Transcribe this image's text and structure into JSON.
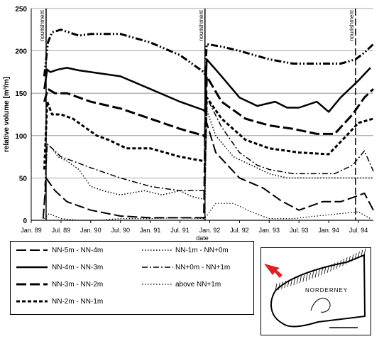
{
  "chart_data": {
    "type": "line",
    "title": "",
    "xlabel": "date",
    "ylabel": "relative volume [m³/m]",
    "ylim": [
      0,
      250
    ],
    "yticks": [
      0,
      50,
      100,
      150,
      200,
      250
    ],
    "xticks": [
      "Jan. 89",
      "Jul. 89",
      "Jan. 90",
      "Jul. 90",
      "Jan. 91",
      "Jul. 91",
      "Jan. 92",
      "Jul. 92",
      "Jan. 93",
      "Jul. 93",
      "Jan. 94",
      "Jul. 94"
    ],
    "x_domain": [
      1989.0,
      1994.75
    ],
    "grid": "horizontal",
    "annotations": [
      {
        "text": "nourishment",
        "x": 1989.25
      },
      {
        "text": "nourishment",
        "x": 1991.92
      },
      {
        "text": "nourishment",
        "x": 1994.45
      }
    ],
    "series": [
      {
        "name": "NN-5m - NN-4m",
        "style": "longdash",
        "width": 2,
        "x": [
          1989.2,
          1989.25,
          1989.3,
          1989.4,
          1989.6,
          1990.0,
          1990.5,
          1991.0,
          1991.5,
          1991.9,
          1991.92,
          1991.95,
          1992.1,
          1992.5,
          1992.9,
          1993.2,
          1993.5,
          1993.9,
          1994.2,
          1994.45,
          1994.6,
          1994.75
        ],
        "y": [
          2,
          50,
          45,
          35,
          22,
          12,
          5,
          3,
          3,
          3,
          120,
          115,
          80,
          50,
          38,
          23,
          12,
          22,
          22,
          28,
          32,
          12
        ]
      },
      {
        "name": "NN-4m - NN-3m",
        "style": "solid",
        "width": 2.5,
        "x": [
          1989.22,
          1989.27,
          1989.32,
          1989.45,
          1989.6,
          1989.8,
          1990.0,
          1990.5,
          1991.0,
          1991.5,
          1991.9,
          1991.92,
          1991.95,
          1992.2,
          1992.5,
          1992.8,
          1993.1,
          1993.3,
          1993.5,
          1993.8,
          1994.0,
          1994.2,
          1994.5,
          1994.7
        ],
        "y": [
          155,
          178,
          175,
          178,
          180,
          177,
          175,
          170,
          155,
          140,
          130,
          128,
          190,
          170,
          145,
          135,
          140,
          133,
          133,
          140,
          128,
          145,
          165,
          180
        ]
      },
      {
        "name": "NN-3m - NN-2m",
        "style": "longdash",
        "width": 3,
        "x": [
          1989.22,
          1989.28,
          1989.4,
          1989.6,
          1990.0,
          1990.5,
          1991.0,
          1991.5,
          1991.9,
          1991.92,
          1991.95,
          1992.2,
          1992.6,
          1993.0,
          1993.4,
          1993.8,
          1994.1,
          1994.4,
          1994.6,
          1994.75
        ],
        "y": [
          140,
          155,
          150,
          150,
          140,
          132,
          120,
          108,
          100,
          98,
          170,
          140,
          120,
          112,
          108,
          102,
          102,
          125,
          145,
          155
        ]
      },
      {
        "name": "NN-2m - NN-1m",
        "style": "shortdash",
        "width": 3,
        "x": [
          1989.22,
          1989.27,
          1989.35,
          1989.5,
          1989.7,
          1989.9,
          1990.1,
          1990.3,
          1990.6,
          1991.0,
          1991.5,
          1991.9,
          1991.92,
          1991.95,
          1992.2,
          1992.6,
          1993.0,
          1993.5,
          1994.0,
          1994.3,
          1994.5,
          1994.75
        ],
        "y": [
          60,
          140,
          125,
          125,
          120,
          110,
          100,
          95,
          85,
          85,
          75,
          70,
          70,
          145,
          120,
          95,
          85,
          80,
          78,
          100,
          115,
          120
        ]
      },
      {
        "name": "NN-1m - NN+0m",
        "style": "dotted",
        "width": 1.5,
        "x": [
          1989.23,
          1989.27,
          1989.35,
          1989.45,
          1989.6,
          1989.8,
          1990.0,
          1990.2,
          1990.5,
          1990.9,
          1991.2,
          1991.5,
          1991.7,
          1991.9,
          1991.92,
          1991.95,
          1992.1,
          1992.4,
          1992.7,
          1993.0,
          1993.3,
          1993.6,
          1993.9,
          1994.2,
          1994.45,
          1994.6,
          1994.75
        ],
        "y": [
          30,
          90,
          85,
          75,
          70,
          60,
          40,
          35,
          30,
          35,
          30,
          35,
          28,
          25,
          25,
          130,
          100,
          75,
          65,
          55,
          50,
          50,
          50,
          50,
          50,
          50,
          50
        ]
      },
      {
        "name": "NN+0m - NN+1m",
        "style": "dashdot",
        "width": 1.5,
        "x": [
          1989.23,
          1989.27,
          1989.35,
          1989.5,
          1989.7,
          1990.0,
          1990.5,
          1991.0,
          1991.5,
          1991.9,
          1991.92,
          1991.95,
          1992.2,
          1992.5,
          1992.8,
          1993.0,
          1993.4,
          1993.8,
          1994.1,
          1994.4,
          1994.6,
          1994.75
        ],
        "y": [
          40,
          90,
          85,
          75,
          70,
          62,
          50,
          40,
          35,
          35,
          38,
          145,
          110,
          80,
          65,
          60,
          55,
          55,
          55,
          65,
          82,
          58
        ]
      },
      {
        "name": "above NN+1m",
        "style": "dotted",
        "width": 1.2,
        "x": [
          1989.22,
          1989.3,
          1989.5,
          1989.8,
          1990.1,
          1990.5,
          1991.0,
          1991.5,
          1991.9,
          1991.95,
          1992.1,
          1992.4,
          1992.7,
          1993.0,
          1993.4,
          1993.8,
          1994.2,
          1994.5,
          1994.7
        ],
        "y": [
          2,
          8,
          2,
          0,
          0,
          2,
          2,
          3,
          2,
          5,
          20,
          20,
          10,
          2,
          2,
          5,
          8,
          10,
          2
        ]
      },
      {
        "name": "",
        "style": "dashdotdot",
        "width": 3,
        "x": [
          1989.22,
          1989.28,
          1989.35,
          1989.5,
          1989.8,
          1990.0,
          1990.5,
          1991.0,
          1991.5,
          1991.9,
          1991.92,
          1991.95,
          1992.2,
          1992.5,
          1993.0,
          1993.4,
          1993.8,
          1994.2,
          1994.45,
          1994.6,
          1994.75
        ],
        "y": [
          170,
          210,
          222,
          225,
          218,
          220,
          220,
          210,
          195,
          175,
          172,
          208,
          205,
          200,
          190,
          185,
          185,
          185,
          190,
          198,
          208
        ]
      }
    ]
  },
  "map": {
    "label": "NORDERNEY",
    "arrow_color": "#e0201c"
  }
}
